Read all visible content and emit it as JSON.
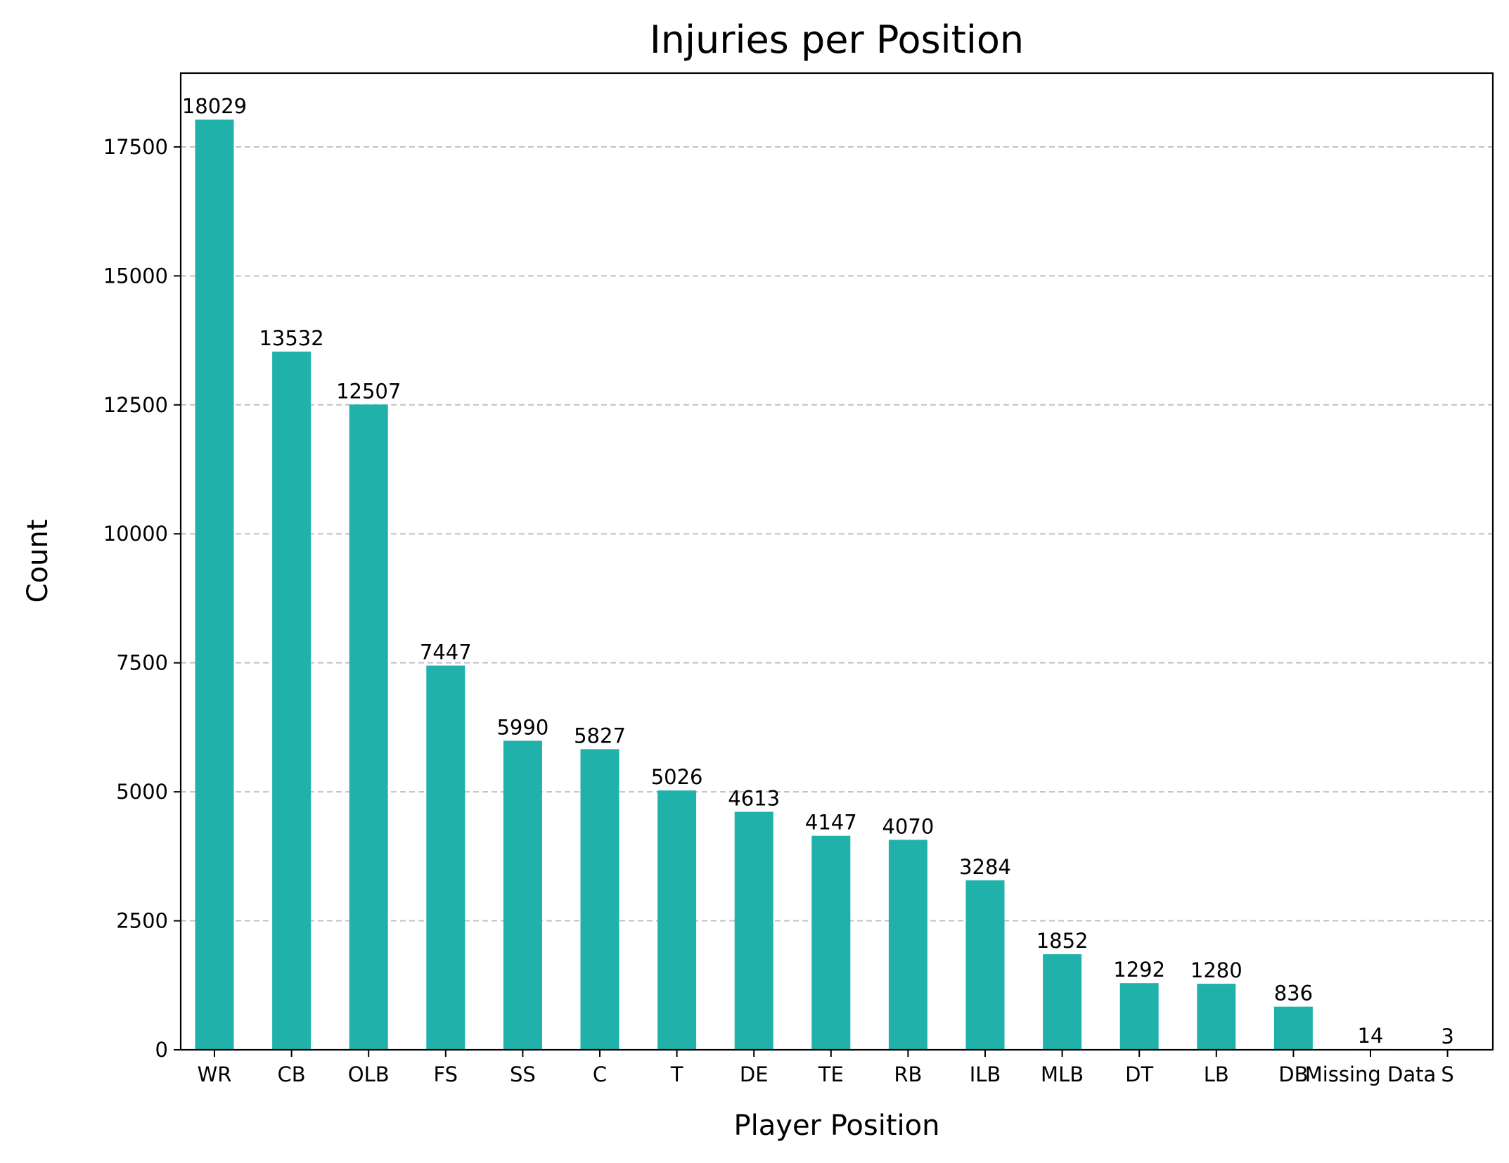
{
  "chart_data": {
    "type": "bar",
    "title": "Injuries per Position",
    "xlabel": "Player Position",
    "ylabel": "Count",
    "categories": [
      "WR",
      "CB",
      "OLB",
      "FS",
      "SS",
      "C",
      "T",
      "DE",
      "TE",
      "RB",
      "ILB",
      "MLB",
      "DT",
      "LB",
      "DB",
      "Missing Data",
      "S"
    ],
    "values": [
      18029,
      13532,
      12507,
      7447,
      5990,
      5827,
      5026,
      4613,
      4147,
      4070,
      3284,
      1852,
      1292,
      1280,
      836,
      14,
      3
    ],
    "data_labels": [
      "18029",
      "13532",
      "12507",
      "7447",
      "5990",
      "5827",
      "5026",
      "4613",
      "4147",
      "4070",
      "3284",
      "1852",
      "1292",
      "1280",
      "836",
      "14",
      "3"
    ],
    "yticks": [
      "0",
      "2500",
      "5000",
      "7500",
      "10000",
      "12500",
      "15000",
      "17500"
    ],
    "ylim": [
      0,
      18930
    ],
    "grid": "horizontal dashed",
    "bar_color": "#20b2aa",
    "grid_color": "#c0c0c0"
  }
}
